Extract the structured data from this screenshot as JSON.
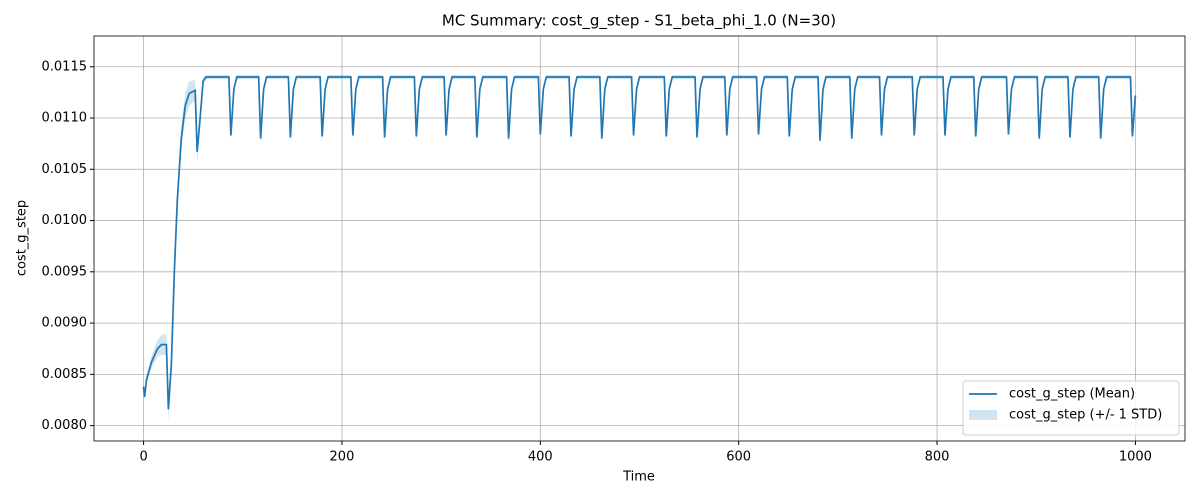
{
  "chart_data": {
    "type": "line",
    "title": "MC Summary: cost_g_step - S1_beta_phi_1.0 (N=30)",
    "xlabel": "Time",
    "ylabel": "cost_g_step",
    "x": [
      0,
      1,
      3,
      8,
      14,
      18,
      23,
      25,
      28,
      31,
      34,
      38,
      42,
      46,
      52,
      54,
      57,
      60,
      63,
      86,
      88,
      91,
      94,
      116,
      118,
      121,
      124,
      146,
      148,
      151,
      154,
      178,
      180,
      183,
      186,
      209,
      211,
      214,
      217,
      241,
      243,
      246,
      249,
      273,
      275,
      278,
      281,
      303,
      305,
      308,
      311,
      334,
      336,
      339,
      342,
      366,
      368,
      371,
      374,
      398,
      400,
      403,
      406,
      429,
      431,
      434,
      437,
      460,
      462,
      465,
      468,
      492,
      494,
      497,
      500,
      525,
      527,
      530,
      533,
      556,
      558,
      561,
      564,
      586,
      588,
      591,
      594,
      618,
      620,
      623,
      626,
      649,
      651,
      654,
      657,
      680,
      682,
      685,
      688,
      712,
      714,
      717,
      720,
      742,
      744,
      747,
      750,
      775,
      777,
      780,
      783,
      806,
      808,
      811,
      814,
      837,
      839,
      842,
      845,
      870,
      872,
      875,
      878,
      901,
      903,
      906,
      909,
      932,
      934,
      937,
      940,
      963,
      965,
      968,
      971,
      995,
      997,
      1000
    ],
    "series": [
      {
        "name": "cost_g_step (Mean)",
        "color": "#1f77b4",
        "values": [
          0.00838,
          0.00828,
          0.00845,
          0.00862,
          0.00875,
          0.00879,
          0.00879,
          0.00816,
          0.0086,
          0.0095,
          0.0102,
          0.0108,
          0.01112,
          0.01124,
          0.01127,
          0.01067,
          0.011,
          0.01136,
          0.0114,
          0.0114,
          0.01083,
          0.01128,
          0.0114,
          0.0114,
          0.0108,
          0.01128,
          0.0114,
          0.0114,
          0.01081,
          0.01128,
          0.0114,
          0.0114,
          0.01082,
          0.01128,
          0.0114,
          0.0114,
          0.01083,
          0.01128,
          0.0114,
          0.0114,
          0.01081,
          0.01128,
          0.0114,
          0.0114,
          0.01082,
          0.01128,
          0.0114,
          0.0114,
          0.01083,
          0.01128,
          0.0114,
          0.0114,
          0.01081,
          0.01128,
          0.0114,
          0.0114,
          0.0108,
          0.01128,
          0.0114,
          0.0114,
          0.01084,
          0.01128,
          0.0114,
          0.0114,
          0.01082,
          0.01128,
          0.0114,
          0.0114,
          0.0108,
          0.01128,
          0.0114,
          0.0114,
          0.01083,
          0.01128,
          0.0114,
          0.0114,
          0.01082,
          0.01128,
          0.0114,
          0.0114,
          0.01081,
          0.01128,
          0.0114,
          0.0114,
          0.01083,
          0.01128,
          0.0114,
          0.0114,
          0.01084,
          0.01128,
          0.0114,
          0.0114,
          0.01082,
          0.01128,
          0.0114,
          0.0114,
          0.01078,
          0.01128,
          0.0114,
          0.0114,
          0.0108,
          0.01128,
          0.0114,
          0.0114,
          0.01083,
          0.01128,
          0.0114,
          0.0114,
          0.01083,
          0.01128,
          0.0114,
          0.0114,
          0.01083,
          0.01128,
          0.0114,
          0.0114,
          0.01082,
          0.01128,
          0.0114,
          0.0114,
          0.01084,
          0.01128,
          0.0114,
          0.0114,
          0.0108,
          0.01128,
          0.0114,
          0.0114,
          0.01081,
          0.01128,
          0.0114,
          0.0114,
          0.0108,
          0.01128,
          0.0114,
          0.0114,
          0.01082,
          0.01122
        ]
      },
      {
        "name": "cost_g_step (+/- 1 STD)",
        "color": "#1f77b4",
        "band": true,
        "values": [
          3e-05,
          3e-05,
          4e-05,
          6e-05,
          8e-05,
          0.0001,
          0.0001,
          0.00012,
          0.00012,
          0.0001,
          0.0001,
          0.00012,
          0.00012,
          0.00012,
          0.0001,
          0.00012,
          8e-05,
          4e-05,
          2e-05,
          2e-05,
          5e-05,
          4e-05,
          2e-05,
          2e-05,
          5e-05,
          4e-05,
          2e-05,
          2e-05,
          5e-05,
          4e-05,
          2e-05,
          2e-05,
          5e-05,
          4e-05,
          2e-05,
          2e-05,
          5e-05,
          4e-05,
          2e-05,
          2e-05,
          5e-05,
          4e-05,
          2e-05,
          2e-05,
          5e-05,
          4e-05,
          2e-05,
          2e-05,
          5e-05,
          4e-05,
          2e-05,
          2e-05,
          5e-05,
          4e-05,
          2e-05,
          2e-05,
          5e-05,
          4e-05,
          2e-05,
          2e-05,
          5e-05,
          4e-05,
          2e-05,
          2e-05,
          5e-05,
          4e-05,
          2e-05,
          2e-05,
          5e-05,
          4e-05,
          2e-05,
          2e-05,
          5e-05,
          4e-05,
          2e-05,
          2e-05,
          5e-05,
          4e-05,
          2e-05,
          2e-05,
          5e-05,
          4e-05,
          2e-05,
          2e-05,
          5e-05,
          4e-05,
          2e-05,
          2e-05,
          5e-05,
          4e-05,
          2e-05,
          2e-05,
          5e-05,
          4e-05,
          2e-05,
          2e-05,
          5e-05,
          4e-05,
          2e-05,
          2e-05,
          5e-05,
          4e-05,
          2e-05,
          2e-05,
          5e-05,
          4e-05,
          2e-05,
          2e-05,
          5e-05,
          4e-05,
          2e-05,
          2e-05,
          5e-05,
          4e-05,
          2e-05,
          2e-05,
          5e-05,
          4e-05,
          2e-05,
          2e-05,
          5e-05,
          4e-05,
          2e-05,
          2e-05,
          5e-05,
          4e-05,
          2e-05,
          2e-05,
          5e-05,
          4e-05,
          2e-05,
          2e-05,
          5e-05,
          4e-05,
          2e-05,
          2e-05,
          5e-05,
          4e-05
        ]
      }
    ],
    "xlim": [
      -50,
      1050
    ],
    "xticks": [
      0,
      200,
      400,
      600,
      800,
      1000
    ],
    "ylim": [
      0.00785,
      0.0118
    ],
    "yticks": [
      {
        "value": 0.008,
        "label": "0.0080"
      },
      0.0085,
      {
        "value": 0.009,
        "label": "0.0090"
      },
      0.0095,
      {
        "value": 0.01,
        "label": "0.0100"
      },
      0.0105,
      {
        "value": 0.011,
        "label": "0.0110"
      },
      0.0115
    ],
    "grid": true,
    "legend": "lower right"
  }
}
